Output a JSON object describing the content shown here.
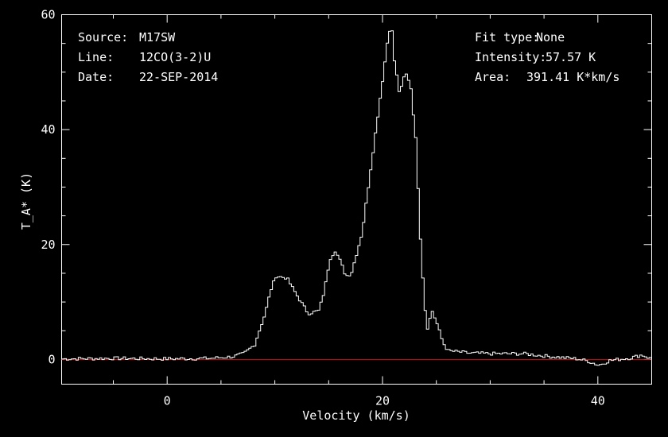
{
  "chart_data": {
    "type": "line",
    "xlabel": "Velocity (km/s)",
    "ylabel": "T_A* (K)",
    "xlim": [
      -9.8,
      45.0
    ],
    "ylim": [
      -4.3,
      60.0
    ],
    "xticks": [
      0,
      20,
      40
    ],
    "yticks": [
      0,
      20,
      40,
      60
    ],
    "grid": false,
    "baseline": 0,
    "colors": {
      "background": "#000000",
      "spectrum": "#ffffff",
      "baseline": "#cc1111",
      "text": "#ffffff"
    },
    "info_left": [
      {
        "label": "Source:",
        "value": "M17SW"
      },
      {
        "label": "Line:",
        "value": "12CO(3-2)U"
      },
      {
        "label": "Date:",
        "value": "22-SEP-2014"
      }
    ],
    "info_right": [
      {
        "label": "Fit type:",
        "value": "None"
      },
      {
        "label": "Intensity:",
        "value": "57.57 K"
      },
      {
        "label": "Area:",
        "value": "391.41 K*km/s"
      }
    ],
    "series": [
      {
        "values": [
          [
            -9.8,
            0.1
          ],
          [
            -5,
            0.2
          ],
          [
            0,
            0.1
          ],
          [
            4,
            0.2
          ],
          [
            6,
            0.5
          ],
          [
            7,
            1.0
          ],
          [
            8,
            2.5
          ],
          [
            9,
            8
          ],
          [
            9.5,
            12
          ],
          [
            10,
            14.5
          ],
          [
            11,
            14.2
          ],
          [
            12,
            11
          ],
          [
            13,
            8
          ],
          [
            14,
            8.5
          ],
          [
            14.5,
            12
          ],
          [
            15,
            17.5
          ],
          [
            15.5,
            19
          ],
          [
            16,
            17
          ],
          [
            16.5,
            14.5
          ],
          [
            17,
            15
          ],
          [
            18,
            22
          ],
          [
            19,
            36
          ],
          [
            20,
            50
          ],
          [
            20.5,
            57.5
          ],
          [
            20.8,
            57
          ],
          [
            21,
            52
          ],
          [
            21.5,
            46
          ],
          [
            22,
            50
          ],
          [
            22.5,
            48
          ],
          [
            23,
            38
          ],
          [
            23.5,
            18
          ],
          [
            24,
            5
          ],
          [
            24.5,
            8.5
          ],
          [
            25,
            6
          ],
          [
            25.5,
            3
          ],
          [
            26,
            1.5
          ],
          [
            28,
            1.1
          ],
          [
            30,
            1.0
          ],
          [
            33,
            1.0
          ],
          [
            35,
            0.6
          ],
          [
            38,
            0.1
          ],
          [
            39,
            -0.3
          ],
          [
            40,
            -1.0
          ],
          [
            41,
            -0.2
          ],
          [
            43,
            0.3
          ],
          [
            44,
            0.8
          ],
          [
            45,
            0.0
          ]
        ]
      }
    ]
  }
}
